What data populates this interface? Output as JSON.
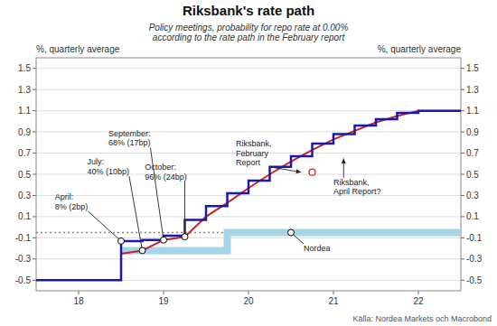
{
  "chart_data": {
    "type": "line",
    "title": "Riksbank's rate path",
    "subtitle": "Policy meetings, probability for repo rate at 0.00%\naccording to the rate path in the February report",
    "ylabel": "%, quarterly average",
    "y2label": "%, quarterly average",
    "source": "Källa: Nordea Markets och Macrobond",
    "xlim": [
      17.5,
      22.5
    ],
    "ylim": [
      -0.6,
      1.6
    ],
    "y2lim": [
      -0.6,
      1.6
    ],
    "xticks": [
      18,
      19,
      20,
      21,
      22
    ],
    "yticks": [
      -0.5,
      -0.3,
      -0.1,
      0.1,
      0.3,
      0.5,
      0.7,
      0.9,
      1.1,
      1.3,
      1.5
    ],
    "y2ticks": [
      -0.5,
      -0.3,
      -0.1,
      0.1,
      0.3,
      0.5,
      0.7,
      0.9,
      1.1,
      1.3,
      1.5
    ],
    "grid": true,
    "series": [
      {
        "color": "#a8d4e8",
        "x": [
          18.5,
          18.5,
          19.75,
          19.75,
          20.25,
          20.25,
          22.5
        ],
        "values": [
          -0.22,
          -0.22,
          -0.22,
          -0.05,
          -0.05,
          -0.05,
          -0.05
        ]
      },
      {
        "color": "#cc2222",
        "x": [
          18.5,
          18.5,
          18.75,
          18.75,
          19.0,
          19.0,
          19.25,
          19.25,
          19.5,
          19.5,
          19.75,
          19.75,
          20.0,
          20.0,
          20.25,
          20.25,
          20.5,
          20.5,
          20.75,
          20.75,
          21.0,
          21.0,
          21.25,
          21.25,
          21.5,
          21.5,
          21.75,
          21.75,
          22.0,
          22.0,
          22.5
        ],
        "values": [
          -0.25,
          -0.25,
          -0.22,
          -0.22,
          -0.12,
          -0.12,
          -0.09,
          -0.09,
          0.1,
          0.1,
          0.23,
          0.23,
          0.37,
          0.37,
          0.5,
          0.5,
          0.62,
          0.62,
          0.73,
          0.73,
          0.83,
          0.83,
          0.91,
          0.91,
          0.99,
          0.99,
          1.05,
          1.05,
          1.1,
          1.1,
          1.1
        ]
      },
      {
        "color": "#1a1aaa",
        "x": [
          17.5,
          18.5,
          18.5,
          18.75,
          18.75,
          19.0,
          19.0,
          19.25,
          19.25,
          19.5,
          19.5,
          19.75,
          19.75,
          20.0,
          20.0,
          20.25,
          20.25,
          20.5,
          20.5,
          20.75,
          20.75,
          21.0,
          21.0,
          21.25,
          21.25,
          21.5,
          21.5,
          21.75,
          21.75,
          22.0,
          22.0,
          22.5
        ],
        "values": [
          -0.5,
          -0.5,
          -0.13,
          -0.13,
          -0.12,
          -0.12,
          -0.08,
          -0.08,
          0.07,
          0.07,
          0.2,
          0.2,
          0.32,
          0.32,
          0.44,
          0.44,
          0.57,
          0.57,
          0.67,
          0.67,
          0.79,
          0.79,
          0.88,
          0.88,
          0.96,
          0.96,
          1.02,
          1.02,
          1.08,
          1.08,
          1.1,
          1.1
        ]
      }
    ],
    "reference_lines": [
      {
        "y": -0.05,
        "line_style": "dotted"
      }
    ],
    "annotations": [
      {
        "text": "April:\n8% (2bp)",
        "x": 18.5,
        "y": -0.13,
        "text_x": 17.72,
        "text_y": 0.24,
        "marker": "circle"
      },
      {
        "text": "July:\n40% (10bp)",
        "x": 18.75,
        "y": -0.22,
        "text_x": 18.1,
        "text_y": 0.57,
        "marker": "circle"
      },
      {
        "text": "September:\n68% (17bp)",
        "x": 19.0,
        "y": -0.12,
        "text_x": 18.35,
        "text_y": 0.84,
        "marker": "circle"
      },
      {
        "text": "October:\n96% (24bp)",
        "x": 19.25,
        "y": -0.09,
        "text_x": 18.78,
        "text_y": 0.52,
        "marker": "circle"
      },
      {
        "text": "Riksbank,\nFebruary\nReport",
        "x": 20.62,
        "y": 0.52,
        "text_x": 19.85,
        "text_y": 0.7
      },
      {
        "text": "Riksbank,\nApril Report?",
        "x": 21.12,
        "y": 0.65,
        "text_x": 21.0,
        "text_y": 0.38
      },
      {
        "text": "Nordea",
        "x": 20.5,
        "y": -0.05,
        "text_x": 20.65,
        "text_y": -0.2,
        "marker": "circle"
      }
    ],
    "points": [
      {
        "x": 20.75,
        "y": 0.52,
        "color": "#cc2222",
        "marker": "circle"
      }
    ]
  }
}
